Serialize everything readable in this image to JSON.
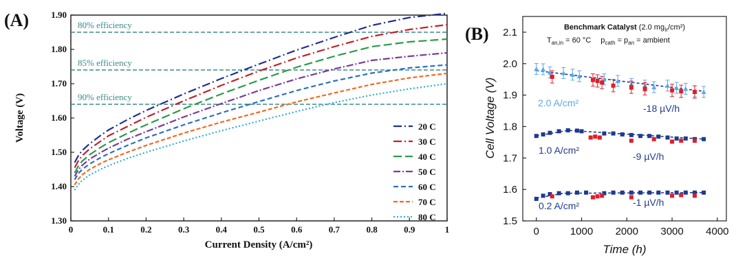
{
  "chart_data": [
    {
      "type": "line",
      "panel_label": "(A)",
      "xlabel": "Current Density  (A/cm²)",
      "ylabel": "Voltage (V)",
      "xlim": [
        0,
        1
      ],
      "ylim": [
        1.3,
        1.9
      ],
      "x_ticks": [
        "0",
        "0.1",
        "0.2",
        "0.3",
        "0.4",
        "0.5",
        "0.6",
        "0.7",
        "0.8",
        "0.9",
        "1"
      ],
      "y_ticks": [
        "1.30",
        "1.40",
        "1.50",
        "1.60",
        "1.70",
        "1.80",
        "1.90"
      ],
      "grid": false,
      "legend_position": "lower-right",
      "x": [
        0.01,
        0.02,
        0.03,
        0.05,
        0.08,
        0.1,
        0.15,
        0.2,
        0.3,
        0.4,
        0.5,
        0.6,
        0.7,
        0.8,
        0.9,
        1.0
      ],
      "series": [
        {
          "name": "20 C",
          "color": "#1f2f8f",
          "dash": "12 4 2 4",
          "values": [
            1.47,
            1.49,
            1.505,
            1.525,
            1.55,
            1.565,
            1.595,
            1.622,
            1.67,
            1.715,
            1.757,
            1.798,
            1.835,
            1.87,
            1.893,
            1.905
          ]
        },
        {
          "name": "30 C",
          "color": "#c0202a",
          "dash": "12 4 2 4",
          "values": [
            1.455,
            1.475,
            1.49,
            1.51,
            1.533,
            1.548,
            1.575,
            1.602,
            1.65,
            1.695,
            1.737,
            1.775,
            1.808,
            1.838,
            1.858,
            1.872
          ]
        },
        {
          "name": "40 C",
          "color": "#2a9a4a",
          "dash": "12 5",
          "values": [
            1.44,
            1.46,
            1.474,
            1.493,
            1.515,
            1.528,
            1.555,
            1.58,
            1.627,
            1.67,
            1.71,
            1.748,
            1.78,
            1.808,
            1.822,
            1.83
          ]
        },
        {
          "name": "50 C",
          "color": "#7a3a9a",
          "dash": "10 3 2 3",
          "values": [
            1.43,
            1.449,
            1.462,
            1.48,
            1.5,
            1.512,
            1.538,
            1.56,
            1.603,
            1.642,
            1.68,
            1.714,
            1.743,
            1.768,
            1.78,
            1.79
          ]
        },
        {
          "name": "60 C",
          "color": "#2a6fc0",
          "dash": "7 4",
          "values": [
            1.42,
            1.438,
            1.45,
            1.466,
            1.485,
            1.496,
            1.52,
            1.542,
            1.58,
            1.615,
            1.648,
            1.68,
            1.708,
            1.731,
            1.746,
            1.755
          ]
        },
        {
          "name": "70 C",
          "color": "#f06a20",
          "dash": "6 3",
          "values": [
            1.405,
            1.422,
            1.434,
            1.45,
            1.468,
            1.478,
            1.5,
            1.52,
            1.556,
            1.588,
            1.617,
            1.647,
            1.673,
            1.698,
            1.717,
            1.73
          ]
        },
        {
          "name": "80 C",
          "color": "#2aaae0",
          "dash": "2 3",
          "values": [
            1.39,
            1.406,
            1.418,
            1.434,
            1.451,
            1.461,
            1.482,
            1.5,
            1.533,
            1.563,
            1.591,
            1.619,
            1.645,
            1.667,
            1.685,
            1.7
          ]
        }
      ],
      "reference_lines": [
        {
          "y": 1.85,
          "label": "80% efficiency"
        },
        {
          "y": 1.74,
          "label": "85% efficiency"
        },
        {
          "y": 1.64,
          "label": "90% efficiency"
        }
      ]
    },
    {
      "type": "scatter",
      "panel_label": "(B)",
      "xlabel": "Time (h)",
      "ylabel": "Cell Voltage (V)",
      "xlim": [
        -300,
        4200
      ],
      "ylim": [
        1.5,
        2.15
      ],
      "x_ticks": [
        "0",
        "1000",
        "2000",
        "3000",
        "4000"
      ],
      "y_ticks": [
        "1.5",
        "1.6",
        "1.7",
        "1.8",
        "1.9",
        "2.0",
        "2.1"
      ],
      "grid": false,
      "title_bold": "Benchmark Catalyst",
      "title_rest": " (2.0 mg",
      "title_sub": "Ir",
      "title_end": "/cm²)",
      "cond_temp": "T",
      "cond_temp_sub": "an,in",
      "cond_temp_val": " = 60 °C",
      "cond_p1": "p",
      "cond_p1_sub": "cath",
      "cond_eq": " = p",
      "cond_p2_sub": "an",
      "cond_end": " = ambient",
      "groups": [
        {
          "label": "2.0 A/cm²",
          "rate": "-18 µV/h",
          "color_a": "#5aa8e6",
          "color_b": "#e01e2a",
          "points_a": [
            [
              0,
              1.983
            ],
            [
              150,
              1.982
            ],
            [
              300,
              1.972
            ],
            [
              600,
              1.97
            ],
            [
              800,
              1.965
            ],
            [
              950,
              1.96
            ],
            [
              1500,
              1.95
            ],
            [
              1800,
              1.945
            ],
            [
              2100,
              1.935
            ],
            [
              2400,
              1.93
            ],
            [
              2600,
              1.925
            ],
            [
              2900,
              1.93
            ],
            [
              3100,
              1.923
            ],
            [
              3300,
              1.92
            ],
            [
              3500,
              1.912
            ],
            [
              3700,
              1.91
            ]
          ],
          "points_b": [
            [
              350,
              1.958
            ],
            [
              1250,
              1.948
            ],
            [
              1350,
              1.945
            ],
            [
              1450,
              1.94
            ],
            [
              1700,
              1.93
            ],
            [
              2100,
              1.925
            ],
            [
              2400,
              1.92
            ],
            [
              3000,
              1.915
            ],
            [
              3200,
              1.912
            ],
            [
              3500,
              1.91
            ]
          ],
          "trend": [
            [
              0,
              1.978
            ],
            [
              3700,
              1.912
            ]
          ]
        },
        {
          "label": "1.0 A/cm²",
          "rate": "-9 µV/h",
          "color_a": "#1f3a8f",
          "color_b": "#e01e2a",
          "points_a": [
            [
              0,
              1.77
            ],
            [
              150,
              1.775
            ],
            [
              300,
              1.78
            ],
            [
              500,
              1.785
            ],
            [
              700,
              1.788
            ],
            [
              900,
              1.787
            ],
            [
              1000,
              1.785
            ],
            [
              1500,
              1.778
            ],
            [
              1700,
              1.778
            ],
            [
              1900,
              1.775
            ],
            [
              2100,
              1.773
            ],
            [
              2300,
              1.77
            ],
            [
              2500,
              1.77
            ],
            [
              2700,
              1.768
            ],
            [
              2900,
              1.765
            ],
            [
              3100,
              1.762
            ],
            [
              3300,
              1.762
            ],
            [
              3500,
              1.76
            ],
            [
              3700,
              1.76
            ]
          ],
          "points_b": [
            [
              1200,
              1.765
            ],
            [
              1300,
              1.768
            ],
            [
              1400,
              1.765
            ],
            [
              2100,
              1.755
            ],
            [
              2600,
              1.76
            ],
            [
              3000,
              1.752
            ],
            [
              3200,
              1.755
            ],
            [
              3500,
              1.755
            ]
          ],
          "trend": [
            [
              0,
              1.77
            ],
            [
              700,
              1.788
            ],
            [
              3700,
              1.76
            ]
          ]
        },
        {
          "label": "0.2 A/cm²",
          "rate": "-1 µV/h",
          "color_a": "#1f3a8f",
          "color_b": "#e01e2a",
          "points_a": [
            [
              0,
              1.57
            ],
            [
              150,
              1.58
            ],
            [
              300,
              1.585
            ],
            [
              500,
              1.588
            ],
            [
              700,
              1.588
            ],
            [
              900,
              1.59
            ],
            [
              1100,
              1.59
            ],
            [
              1500,
              1.588
            ],
            [
              1700,
              1.59
            ],
            [
              1900,
              1.59
            ],
            [
              2100,
              1.59
            ],
            [
              2300,
              1.59
            ],
            [
              2500,
              1.59
            ],
            [
              2700,
              1.59
            ],
            [
              2900,
              1.59
            ],
            [
              3100,
              1.59
            ],
            [
              3300,
              1.59
            ],
            [
              3500,
              1.59
            ],
            [
              3700,
              1.59
            ]
          ],
          "points_b": [
            [
              350,
              1.578
            ],
            [
              1250,
              1.575
            ],
            [
              1350,
              1.578
            ],
            [
              1450,
              1.58
            ],
            [
              2100,
              1.575
            ],
            [
              3000,
              1.58
            ],
            [
              3200,
              1.582
            ],
            [
              3500,
              1.58
            ]
          ],
          "trend": [
            [
              0,
              1.572
            ],
            [
              600,
              1.588
            ],
            [
              3700,
              1.59
            ]
          ]
        }
      ]
    }
  ]
}
